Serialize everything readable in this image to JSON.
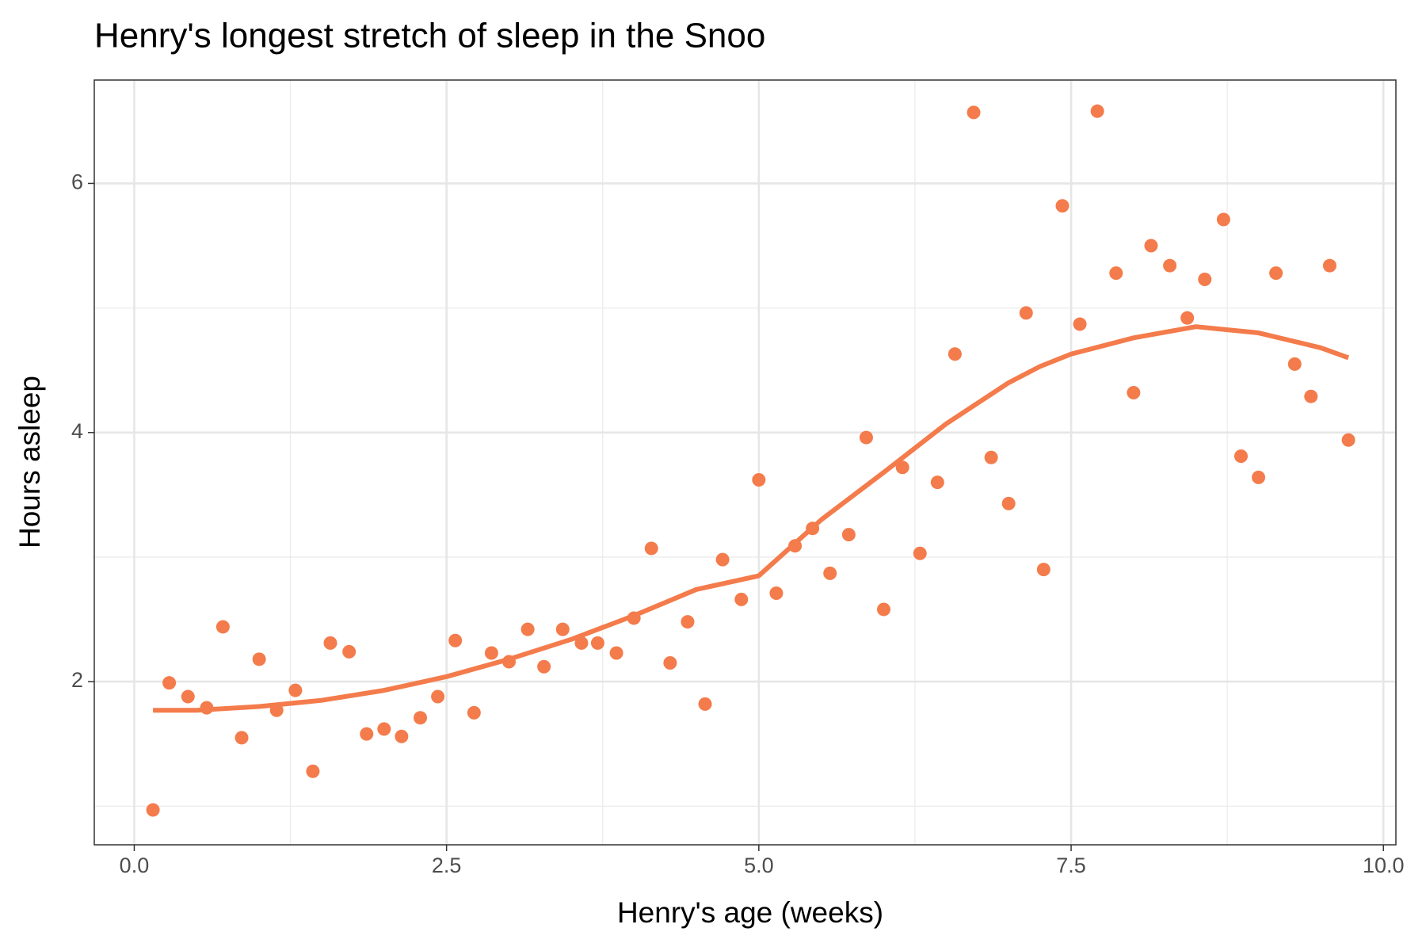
{
  "chart_data": {
    "type": "scatter",
    "title": "Henry's longest stretch of sleep in the Snoo",
    "xlabel": "Henry's age (weeks)",
    "ylabel": "Hours asleep",
    "color": "#f47b4b",
    "x": [
      0.15,
      0.28,
      0.43,
      0.58,
      0.71,
      0.86,
      1.0,
      1.14,
      1.29,
      1.43,
      1.57,
      1.72,
      1.86,
      2.0,
      2.14,
      2.29,
      2.43,
      2.57,
      2.72,
      2.86,
      3.0,
      3.15,
      3.28,
      3.43,
      3.58,
      3.71,
      3.86,
      4.0,
      4.14,
      4.29,
      4.43,
      4.57,
      4.71,
      4.86,
      5.0,
      5.14,
      5.29,
      5.43,
      5.57,
      5.72,
      5.86,
      6.0,
      6.15,
      6.29,
      6.43,
      6.57,
      6.72,
      6.86,
      7.0,
      7.14,
      7.28,
      7.43,
      7.57,
      7.71,
      7.86,
      8.0,
      8.14,
      8.29,
      8.43,
      8.57,
      8.72,
      8.86,
      9.0,
      9.14,
      9.29,
      9.42,
      9.57,
      9.72
    ],
    "values": [
      0.97,
      1.99,
      1.88,
      1.79,
      2.44,
      1.55,
      2.18,
      1.77,
      1.93,
      1.28,
      2.31,
      2.24,
      1.58,
      1.62,
      1.56,
      1.71,
      1.88,
      2.33,
      1.75,
      2.23,
      2.16,
      2.42,
      2.12,
      2.42,
      2.31,
      2.31,
      2.23,
      2.51,
      3.07,
      2.15,
      2.48,
      1.82,
      2.98,
      2.66,
      3.62,
      2.71,
      3.09,
      3.23,
      2.87,
      3.18,
      3.96,
      2.58,
      3.72,
      3.03,
      3.6,
      4.63,
      6.57,
      3.8,
      3.43,
      4.96,
      2.9,
      5.82,
      4.87,
      6.58,
      5.28,
      4.32,
      5.5,
      5.34,
      4.92,
      5.23,
      5.71,
      3.81,
      3.64,
      5.28,
      4.55,
      4.29,
      5.34,
      3.94
    ],
    "smooth": {
      "x": [
        0.15,
        0.5,
        1.0,
        1.5,
        2.0,
        2.5,
        3.0,
        3.5,
        4.0,
        4.5,
        5.0,
        5.5,
        6.0,
        6.5,
        7.0,
        7.25,
        7.5,
        8.0,
        8.5,
        9.0,
        9.5,
        9.72
      ],
      "values": [
        1.77,
        1.77,
        1.8,
        1.85,
        1.93,
        2.04,
        2.18,
        2.34,
        2.53,
        2.74,
        2.85,
        3.3,
        3.68,
        4.07,
        4.4,
        4.53,
        4.63,
        4.76,
        4.85,
        4.8,
        4.68,
        4.6
      ]
    },
    "xlim": [
      -0.32,
      10.1
    ],
    "ylim": [
      0.69,
      6.83
    ],
    "xticks": [
      {
        "value": 0,
        "label": "0.0"
      },
      2.5,
      {
        "value": 5,
        "label": "5.0"
      },
      7.5,
      {
        "value": 10,
        "label": "10.0"
      }
    ],
    "yticks": [
      2,
      4,
      6
    ],
    "x_minor_grid": [
      1.25,
      3.75,
      6.25,
      8.75
    ],
    "y_minor_grid": [
      1,
      3,
      5
    ],
    "grid": true
  }
}
